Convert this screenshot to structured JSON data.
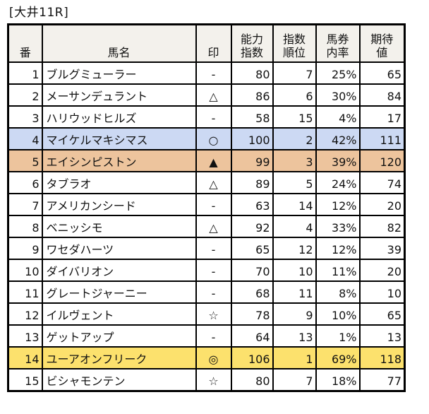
{
  "title": "[大井11R]",
  "colors": {
    "header_bg": "#f3f1ec",
    "border": "#000000",
    "highlights": {
      "blue": "#ccd9f3",
      "orange": "#edc49d",
      "yellow": "#fce16d"
    }
  },
  "chart_data": {
    "type": "table",
    "title": "[大井11R]",
    "columns": [
      {
        "key": "num",
        "label": "番"
      },
      {
        "key": "name",
        "label": "馬名"
      },
      {
        "key": "mark",
        "label": "印"
      },
      {
        "key": "ability",
        "label": "能力\n指数"
      },
      {
        "key": "rank",
        "label": "指数\n順位"
      },
      {
        "key": "rate",
        "label": "馬券\n内率"
      },
      {
        "key": "ev",
        "label": "期待\n値"
      }
    ],
    "rows": [
      {
        "num": "1",
        "name": "ブルグミューラー",
        "mark": "-",
        "ability": "80",
        "rank": "7",
        "rate": "25%",
        "ev": "65",
        "highlight": null
      },
      {
        "num": "2",
        "name": "メーサンデュラント",
        "mark": "△",
        "ability": "86",
        "rank": "6",
        "rate": "30%",
        "ev": "84",
        "highlight": null
      },
      {
        "num": "3",
        "name": "ハリウッドヒルズ",
        "mark": "-",
        "ability": "58",
        "rank": "15",
        "rate": "4%",
        "ev": "17",
        "highlight": null
      },
      {
        "num": "4",
        "name": "マイケルマキシマス",
        "mark": "○",
        "ability": "100",
        "rank": "2",
        "rate": "42%",
        "ev": "111",
        "highlight": "blue"
      },
      {
        "num": "5",
        "name": "エイシンピストン",
        "mark": "▲",
        "ability": "99",
        "rank": "3",
        "rate": "39%",
        "ev": "120",
        "highlight": "orange"
      },
      {
        "num": "6",
        "name": "タブラオ",
        "mark": "△",
        "ability": "89",
        "rank": "5",
        "rate": "24%",
        "ev": "74",
        "highlight": null
      },
      {
        "num": "7",
        "name": "アメリカンシード",
        "mark": "-",
        "ability": "63",
        "rank": "14",
        "rate": "12%",
        "ev": "20",
        "highlight": null
      },
      {
        "num": "8",
        "name": "ベニッシモ",
        "mark": "△",
        "ability": "92",
        "rank": "4",
        "rate": "33%",
        "ev": "82",
        "highlight": null
      },
      {
        "num": "9",
        "name": "ワセダハーツ",
        "mark": "-",
        "ability": "65",
        "rank": "12",
        "rate": "12%",
        "ev": "39",
        "highlight": null
      },
      {
        "num": "10",
        "name": "ダイバリオン",
        "mark": "-",
        "ability": "70",
        "rank": "10",
        "rate": "11%",
        "ev": "20",
        "highlight": null
      },
      {
        "num": "11",
        "name": "グレートジャーニー",
        "mark": "-",
        "ability": "68",
        "rank": "11",
        "rate": "8%",
        "ev": "10",
        "highlight": null
      },
      {
        "num": "12",
        "name": "イルヴェント",
        "mark": "☆",
        "ability": "78",
        "rank": "9",
        "rate": "10%",
        "ev": "65",
        "highlight": null
      },
      {
        "num": "13",
        "name": "ゲットアップ",
        "mark": "-",
        "ability": "64",
        "rank": "13",
        "rate": "1%",
        "ev": "13",
        "highlight": null
      },
      {
        "num": "14",
        "name": "ユーアオンフリーク",
        "mark": "◎",
        "ability": "106",
        "rank": "1",
        "rate": "69%",
        "ev": "118",
        "highlight": "yellow"
      },
      {
        "num": "15",
        "name": "ビシャモンテン",
        "mark": "☆",
        "ability": "80",
        "rank": "7",
        "rate": "18%",
        "ev": "77",
        "highlight": null
      }
    ]
  }
}
